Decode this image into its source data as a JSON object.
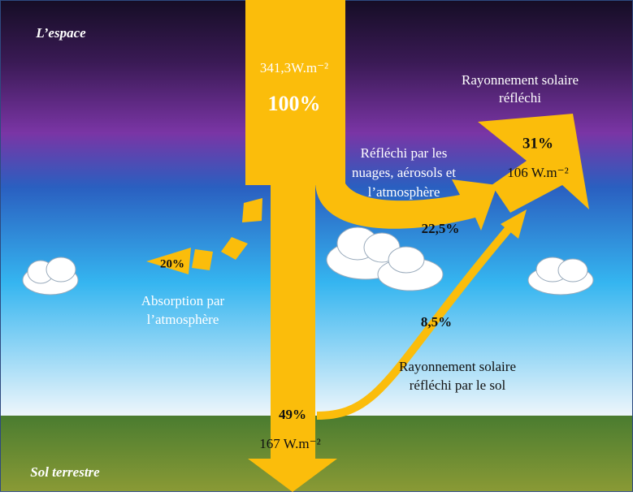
{
  "regions": {
    "space": "L’espace",
    "ground": "Sol terrestre"
  },
  "incoming": {
    "flux": "341,3W.m⁻²",
    "percent": "100%"
  },
  "reflected_clouds": {
    "label": [
      "Réfléchi par les",
      "nuages, aérosols et",
      "l’atmosphère"
    ],
    "percent": "22,5%"
  },
  "reflected_total": {
    "label": [
      "Rayonnement solaire",
      "réfléchi"
    ],
    "percent": "31%",
    "flux": "106 W.m⁻²"
  },
  "absorbed": {
    "percent": "20%",
    "label": [
      "Absorption par",
      "l’atmosphère"
    ]
  },
  "reflected_ground": {
    "percent": "8,5%",
    "label": [
      "Rayonnement solaire",
      "réfléchi par le sol"
    ]
  },
  "ground_absorbed": {
    "percent": "49%",
    "flux": "167 W.m⁻²"
  }
}
